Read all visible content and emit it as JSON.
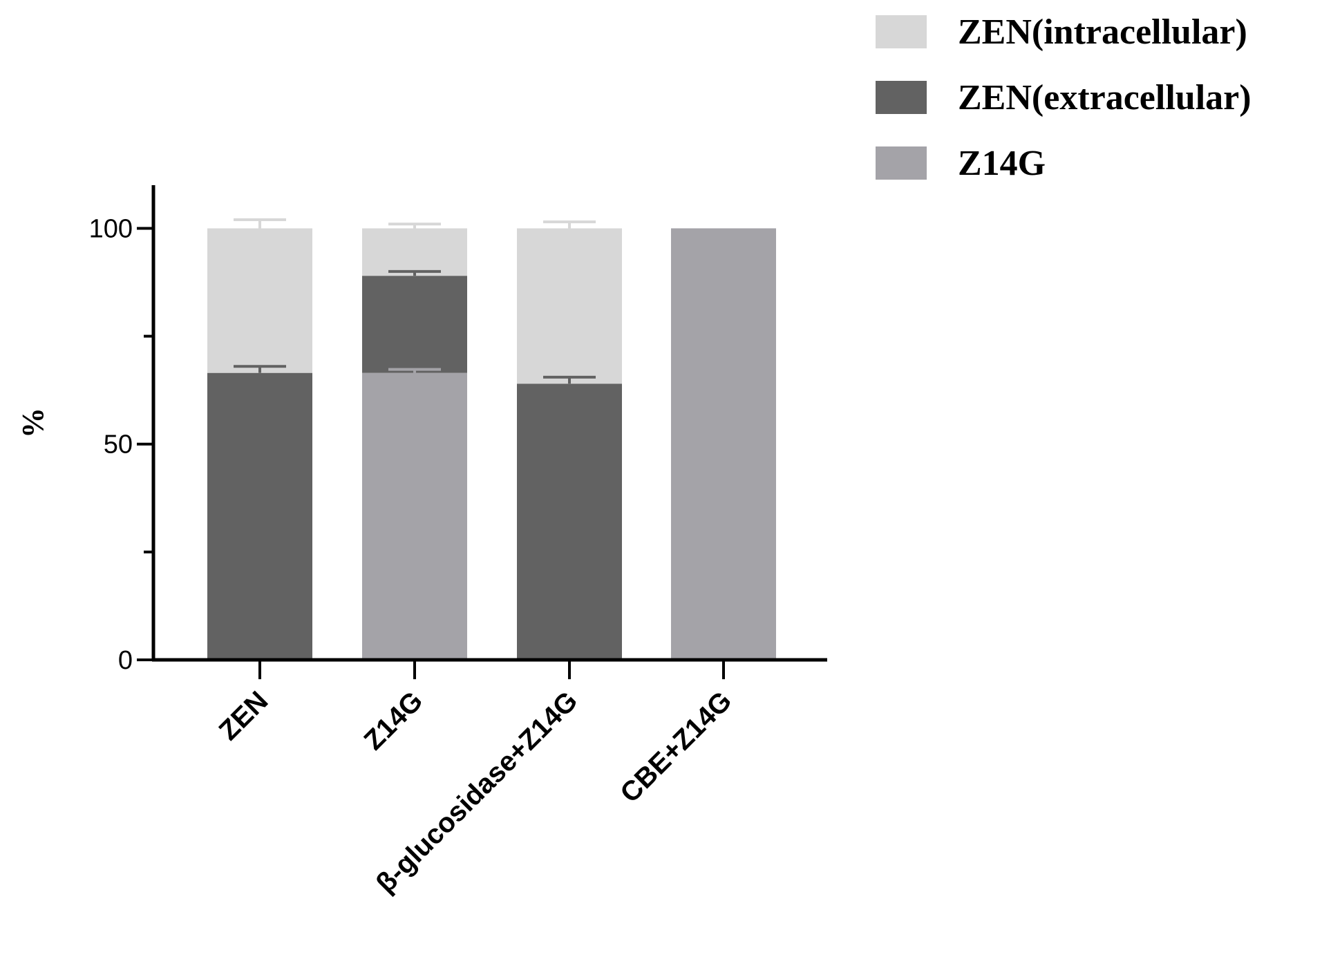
{
  "chart_data": {
    "type": "bar",
    "stacked": true,
    "categories": [
      "ZEN",
      "Z14G",
      "β-glucosidase+Z14G",
      "CBE+Z14G"
    ],
    "series": [
      {
        "name": "Z14G",
        "color": "#a4a3a8",
        "values": [
          0,
          66.5,
          0,
          100
        ],
        "errors": [
          0,
          0.8,
          0,
          0
        ]
      },
      {
        "name": "ZEN(extracellular)",
        "color": "#626262",
        "values": [
          66.5,
          22.5,
          64,
          0
        ],
        "errors": [
          1.5,
          1,
          1.5,
          0
        ]
      },
      {
        "name": "ZEN(intracellular)",
        "color": "#d7d7d7",
        "values": [
          33.5,
          11,
          36,
          0
        ],
        "errors": [
          2,
          1,
          1.5,
          0
        ]
      }
    ],
    "title": "",
    "xlabel": "",
    "ylabel": "%",
    "ylim": [
      0,
      110
    ],
    "yticks": [
      0,
      50,
      100
    ],
    "yticks_minor": [
      25,
      75
    ],
    "grid": false,
    "legend": {
      "placement": "top-right",
      "order": [
        "ZEN(intracellular)",
        "ZEN(extracellular)",
        "Z14G"
      ]
    }
  }
}
